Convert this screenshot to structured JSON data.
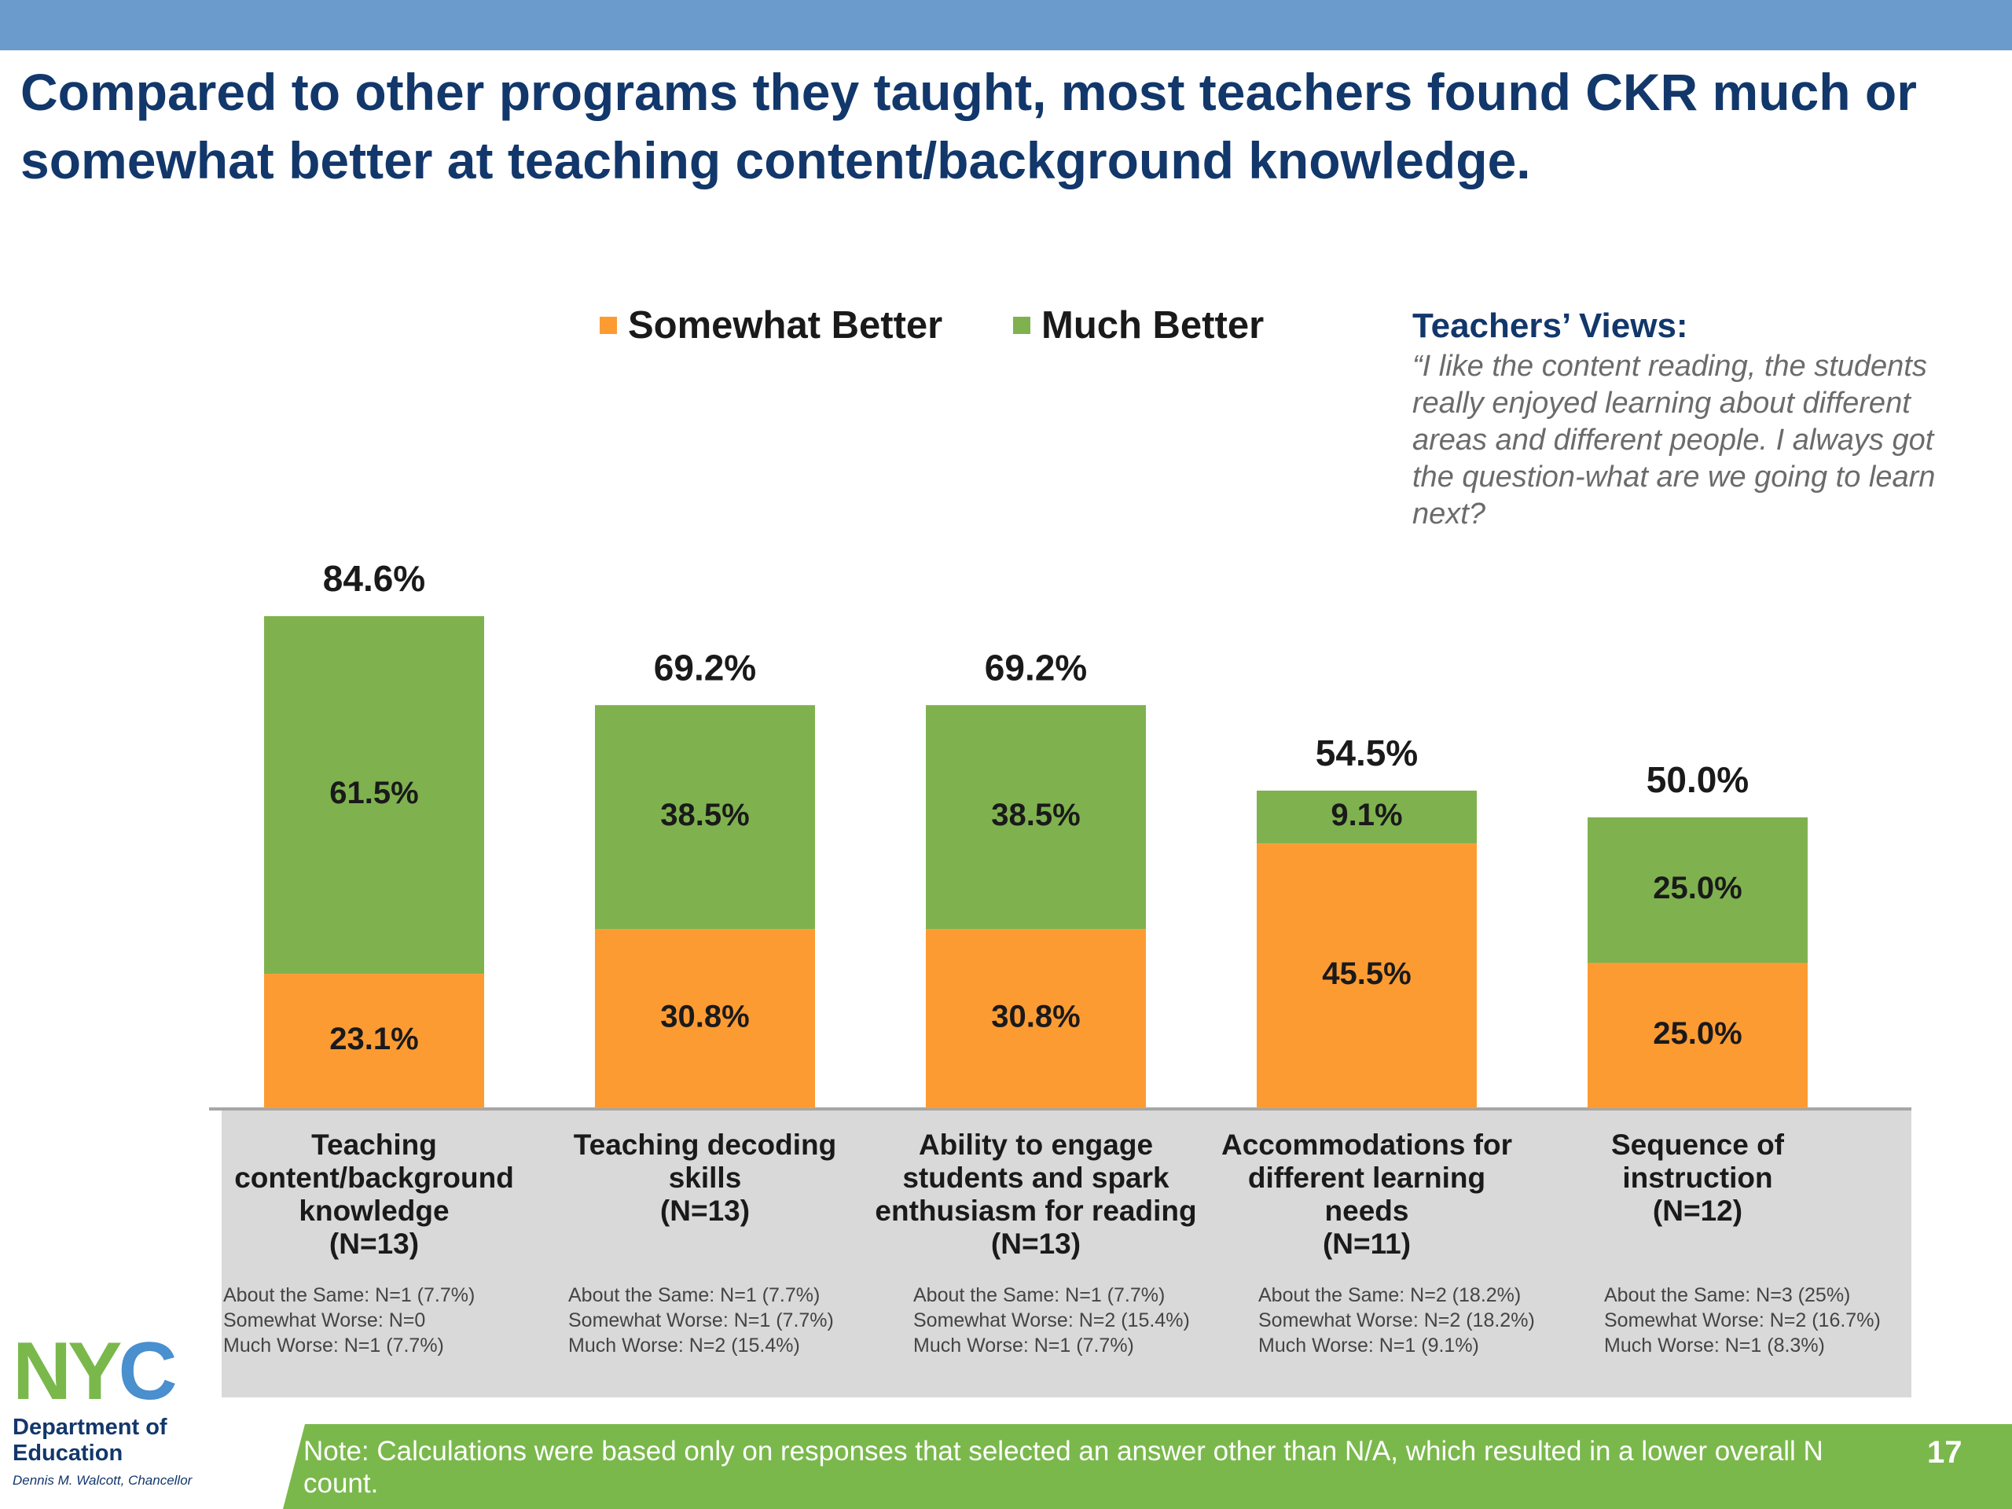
{
  "slide": {
    "title": "Compared to other programs they taught, most teachers found CKR much or somewhat better at teaching content/background knowledge.",
    "page_number": "17",
    "note": "Note: Calculations were based only on responses that selected an answer other than N/A, which resulted in a lower overall N count."
  },
  "quote": {
    "heading": "Teachers’ Views:",
    "text": "“I like the content reading, the students really enjoyed learning about different areas and different people. I always got the question-what are we going to learn next?"
  },
  "logo": {
    "letters": [
      "N",
      "Y",
      "C"
    ],
    "letter_colors": [
      "#7ab84c",
      "#7ab84c",
      "#4a8fce"
    ],
    "department": "Department of Education",
    "chancellor": "Dennis M. Walcott, Chancellor"
  },
  "colors": {
    "somewhat_better": "#fd9b33",
    "much_better": "#7fb24f",
    "title_blue": "#12376b",
    "top_band": "#6a9bcc",
    "axis_band": "#d9d9d9"
  },
  "chart_data": {
    "type": "bar",
    "stacked": true,
    "ylim": [
      0,
      100
    ],
    "categories": [
      [
        "Teaching",
        "content/background",
        "knowledge",
        "(N=13)"
      ],
      [
        "Teaching decoding",
        "skills",
        "(N=13)"
      ],
      [
        "Ability to engage",
        "students and spark",
        "enthusiasm for reading",
        "(N=13)"
      ],
      [
        "Accommodations for",
        "different learning",
        "needs",
        "(N=11)"
      ],
      [
        "Sequence of",
        "instruction",
        "(N=12)"
      ]
    ],
    "series": [
      {
        "name": "Somewhat Better",
        "values": [
          23.1,
          30.8,
          30.8,
          45.5,
          25.0
        ],
        "labels": [
          "23.1%",
          "30.8%",
          "30.8%",
          "45.5%",
          "25.0%"
        ]
      },
      {
        "name": "Much Better",
        "values": [
          61.5,
          38.5,
          38.5,
          9.1,
          25.0
        ],
        "labels": [
          "61.5%",
          "38.5%",
          "38.5%",
          "9.1%",
          "25.0%"
        ]
      }
    ],
    "totals": [
      "84.6%",
      "69.2%",
      "69.2%",
      "54.5%",
      "50.0%"
    ],
    "notes": [
      [
        "About the Same: N=1 (7.7%)",
        "Somewhat Worse: N=0",
        "Much Worse: N=1 (7.7%)"
      ],
      [
        "About the Same: N=1 (7.7%)",
        "Somewhat Worse: N=1 (7.7%)",
        "Much Worse: N=2 (15.4%)"
      ],
      [
        "About the Same: N=1 (7.7%)",
        "Somewhat Worse: N=2 (15.4%)",
        "Much Worse: N=1 (7.7%)"
      ],
      [
        "About the Same: N=2 (18.2%)",
        "Somewhat Worse: N=2 (18.2%)",
        "Much Worse: N=1 (9.1%)"
      ],
      [
        "About the Same: N=3 (25%)",
        "Somewhat Worse: N=2 (16.7%)",
        "Much Worse: N=1 (8.3%)"
      ]
    ]
  }
}
